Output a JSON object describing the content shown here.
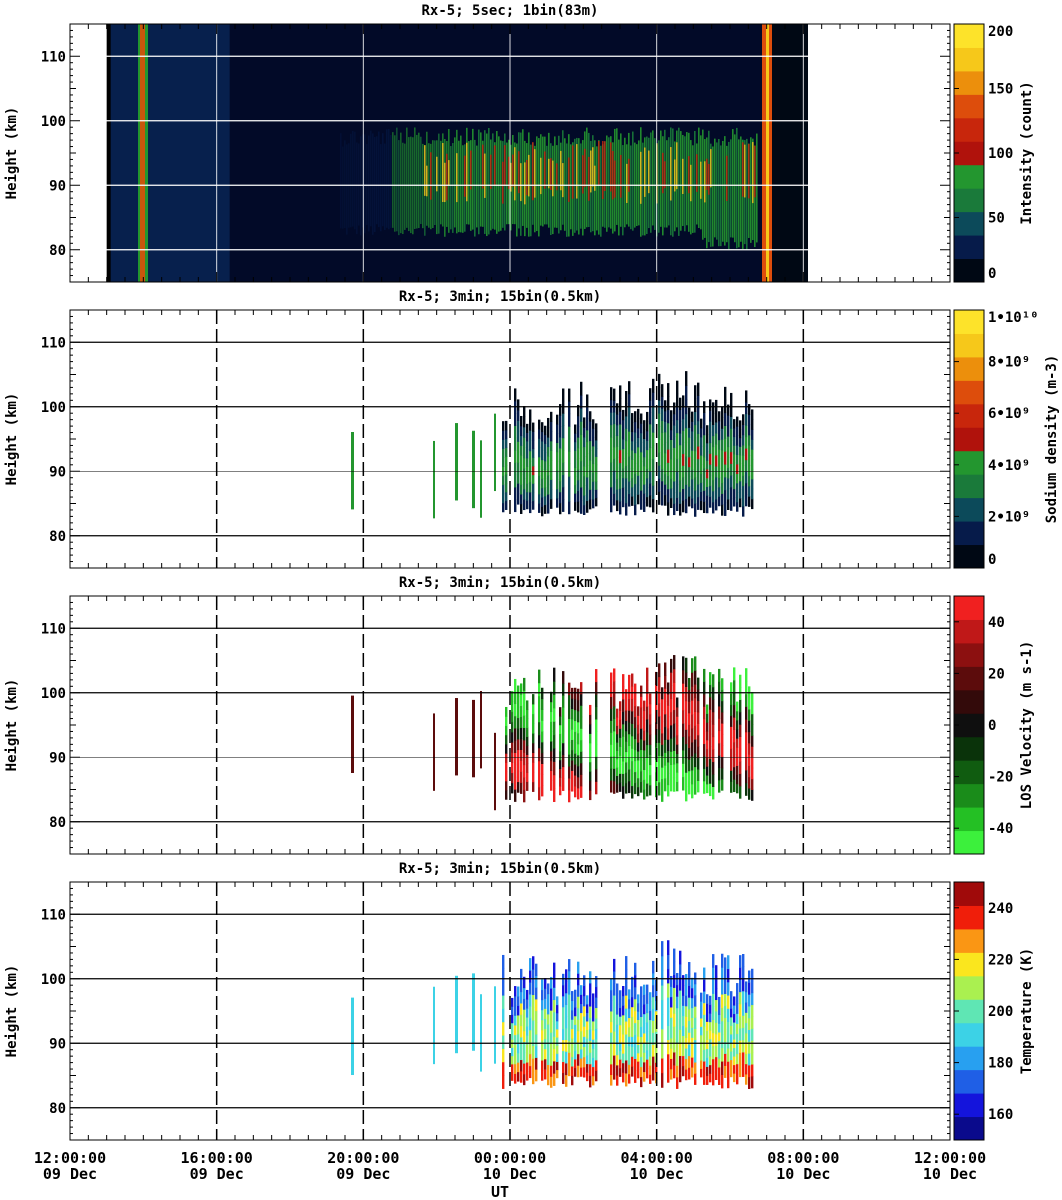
{
  "figure": {
    "xaxis_label": "UT",
    "x_ticks": [
      {
        "time": "12:00:00",
        "date": "09 Dec"
      },
      {
        "time": "16:00:00",
        "date": "09 Dec"
      },
      {
        "time": "20:00:00",
        "date": "09 Dec"
      },
      {
        "time": "00:00:00",
        "date": "10 Dec"
      },
      {
        "time": "04:00:00",
        "date": "10 Dec"
      },
      {
        "time": "08:00:00",
        "date": "10 Dec"
      },
      {
        "time": "12:00:00",
        "date": "10 Dec"
      }
    ]
  },
  "chart_data": [
    {
      "type": "heatmap",
      "title": "Rx-5;  5sec; 1bin(83m)",
      "xlabel": "UT",
      "ylabel": "Height (km)",
      "x_range_hours_ut": [
        12,
        36
      ],
      "ylim": [
        75,
        115
      ],
      "y_ticks": [
        80,
        90,
        100,
        110
      ],
      "data_extent_hours_ut": [
        13.0,
        31.5
      ],
      "layer_km": [
        83,
        104
      ],
      "colorbar": {
        "label": "Intensity (count)",
        "range": [
          0,
          200
        ],
        "ticks": [
          "0",
          "50",
          "100",
          "150",
          "200"
        ],
        "colors": [
          "#000814",
          "#061b4a",
          "#0c4a5a",
          "#1a7a3a",
          "#23962f",
          "#b0120c",
          "#c8260c",
          "#dd4d0c",
          "#ec8f0c",
          "#f6c81a",
          "#fde32a"
        ]
      }
    },
    {
      "type": "heatmap",
      "title": "Rx-5; 3min; 15bin(0.5km)",
      "xlabel": "UT",
      "ylabel": "Height (km)",
      "x_range_hours_ut": [
        12,
        36
      ],
      "ylim": [
        75,
        115
      ],
      "y_ticks": [
        80,
        90,
        100,
        110
      ],
      "data_extent_hours_ut": [
        19.8,
        31.0
      ],
      "layer_km": [
        83,
        104
      ],
      "colorbar": {
        "label": "Sodium density (m-3)",
        "range": [
          0,
          10000000000.0
        ],
        "ticks": [
          "0",
          "2•10⁹",
          "4•10⁹",
          "6•10⁹",
          "8•10⁹",
          "1•10¹⁰"
        ],
        "colors": [
          "#000814",
          "#061b4a",
          "#0c4a5a",
          "#1a7a3a",
          "#23962f",
          "#b0120c",
          "#c8260c",
          "#dd4d0c",
          "#ec8f0c",
          "#f6c81a",
          "#fde32a"
        ]
      }
    },
    {
      "type": "heatmap",
      "title": "Rx-5; 3min; 15bin(0.5km)",
      "xlabel": "UT",
      "ylabel": "Height (km)",
      "x_range_hours_ut": [
        12,
        36
      ],
      "ylim": [
        75,
        115
      ],
      "y_ticks": [
        80,
        90,
        100,
        110
      ],
      "data_extent_hours_ut": [
        19.8,
        31.0
      ],
      "layer_km": [
        83,
        104
      ],
      "colorbar": {
        "label": "LOS Velocity (m s-1)",
        "range": [
          -50,
          50
        ],
        "ticks": [
          "-40",
          "-20",
          "0",
          "20",
          "40"
        ],
        "colors": [
          "#3cf03c",
          "#24c024",
          "#1a8c1a",
          "#105c10",
          "#0a330a",
          "#0f0f0f",
          "#330a0a",
          "#5c0c0c",
          "#8c1010",
          "#c01818",
          "#f02020"
        ]
      }
    },
    {
      "type": "heatmap",
      "title": "Rx-5; 3min; 15bin(0.5km)",
      "xlabel": "UT",
      "ylabel": "Height (km)",
      "x_range_hours_ut": [
        12,
        36
      ],
      "ylim": [
        75,
        115
      ],
      "y_ticks": [
        80,
        90,
        100,
        110
      ],
      "data_extent_hours_ut": [
        19.8,
        31.0
      ],
      "layer_km": [
        83,
        104
      ],
      "colorbar": {
        "label": "Temperature (K)",
        "range": [
          150,
          250
        ],
        "ticks": [
          "160",
          "180",
          "200",
          "220",
          "240"
        ],
        "colors": [
          "#0a0a8c",
          "#1414dc",
          "#1f5fe6",
          "#28a0f0",
          "#3cd2e6",
          "#5fe6b4",
          "#aaf050",
          "#fae61e",
          "#fa9614",
          "#f01e0a",
          "#a00a0a"
        ]
      }
    }
  ]
}
